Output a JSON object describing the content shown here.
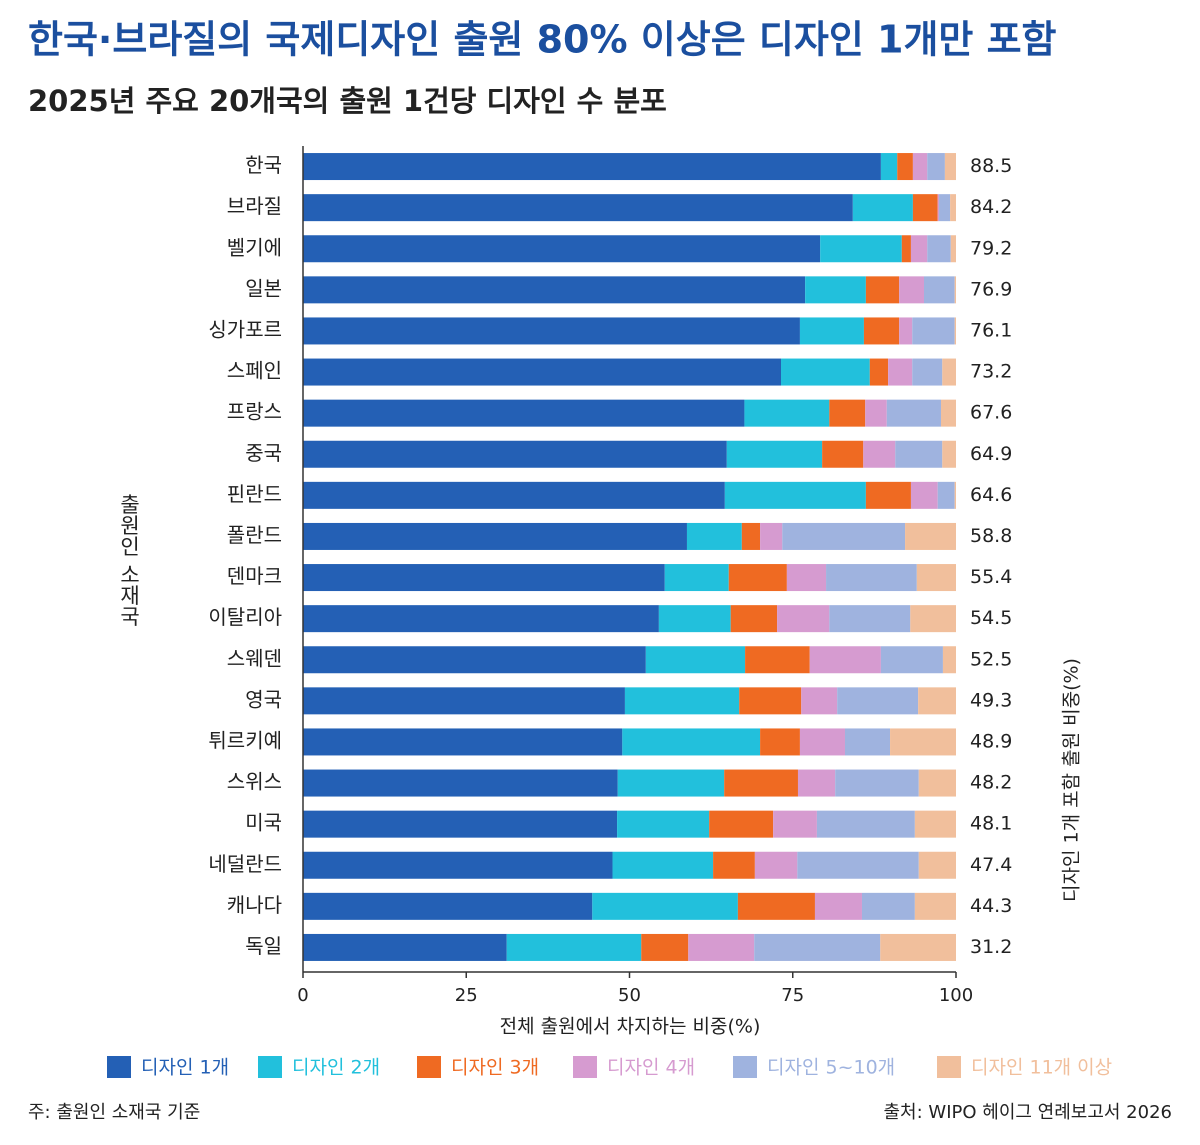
{
  "chart_data": {
    "type": "stacked-barh",
    "title": "한국·브라질의 국제디자인 출원 80% 이상은 디자인 1개만 포함",
    "subtitle": "2025년 주요 20개국의 출원 1건당 디자인 수 분포",
    "y_label": "출원인 소재국",
    "x_label": "전체 출원에서 차지하는 비중(%)",
    "right_label": "디자인 1개 포함 출원 비중(%)",
    "note": "주: 출원인 소재국 기준",
    "source": "출처: WIPO 헤이그 연례보고서 2026",
    "categories": [
      "한국",
      "브라질",
      "벨기에",
      "일본",
      "싱가포르",
      "스페인",
      "프랑스",
      "중국",
      "핀란드",
      "폴란드",
      "덴마크",
      "이탈리아",
      "스웨덴",
      "영국",
      "튀르키예",
      "스위스",
      "미국",
      "네덜란드",
      "캐나다",
      "독일"
    ],
    "series": [
      {
        "name": "디자인 1개",
        "color": "#2460b5",
        "values": [
          88.5,
          84.2,
          79.2,
          76.9,
          76.1,
          73.2,
          67.6,
          64.9,
          64.6,
          58.8,
          55.4,
          54.5,
          52.5,
          49.3,
          48.9,
          48.2,
          48.1,
          47.4,
          44.3,
          31.2
        ]
      },
      {
        "name": "디자인 2개",
        "color": "#22c0dc",
        "values": [
          2.5,
          9.2,
          12.5,
          9.3,
          9.8,
          13.6,
          13.0,
          14.6,
          21.6,
          8.4,
          9.8,
          11.0,
          15.2,
          17.5,
          21.1,
          16.3,
          14.1,
          15.4,
          22.3,
          20.6
        ]
      },
      {
        "name": "디자인 3개",
        "color": "#ef6a22",
        "values": [
          2.4,
          3.8,
          1.4,
          5.1,
          5.4,
          2.8,
          5.5,
          6.3,
          6.9,
          2.8,
          8.9,
          7.1,
          9.9,
          9.5,
          6.1,
          11.3,
          9.8,
          6.4,
          11.8,
          7.2
        ]
      },
      {
        "name": "디자인 4개",
        "color": "#d69bd0",
        "values": [
          2.2,
          0.2,
          2.5,
          3.8,
          2.0,
          3.7,
          3.3,
          4.9,
          4.1,
          3.4,
          6.0,
          8.0,
          10.9,
          5.5,
          6.9,
          5.7,
          6.7,
          6.5,
          7.2,
          10.1
        ]
      },
      {
        "name": "디자인 5~10개",
        "color": "#9fb3df",
        "values": [
          2.7,
          1.7,
          3.6,
          4.7,
          6.5,
          4.6,
          8.3,
          7.2,
          2.6,
          18.8,
          13.9,
          12.4,
          9.5,
          12.4,
          6.9,
          12.8,
          15.0,
          18.6,
          8.1,
          19.3
        ]
      },
      {
        "name": "디자인 11개 이상",
        "color": "#f1bf9c",
        "values": [
          1.7,
          0.9,
          0.8,
          0.2,
          0.2,
          2.1,
          2.3,
          2.1,
          0.2,
          7.8,
          6.0,
          7.0,
          2.0,
          5.8,
          10.1,
          5.7,
          6.3,
          5.7,
          6.3,
          11.6
        ]
      }
    ],
    "xlim": [
      0,
      100
    ],
    "xticks": [
      0,
      25,
      50,
      75,
      100
    ]
  }
}
